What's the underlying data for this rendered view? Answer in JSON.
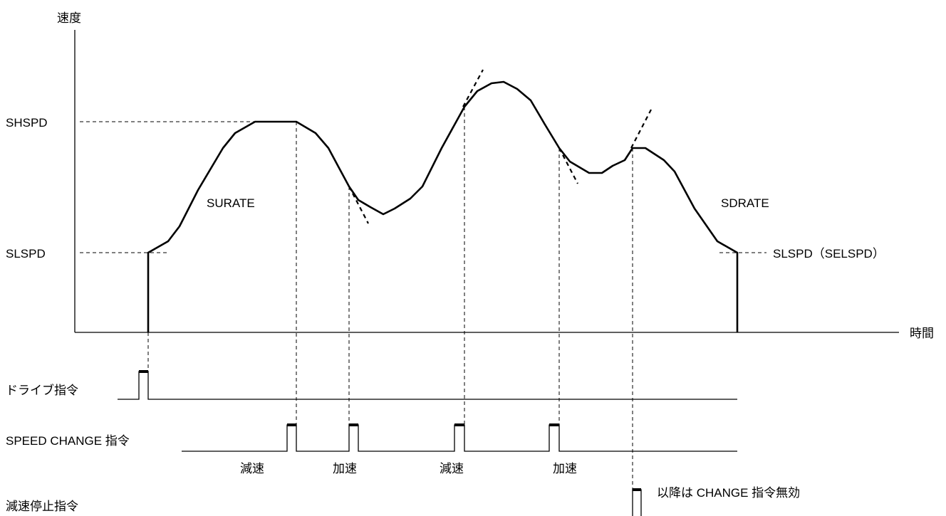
{
  "axes": {
    "y_label": "速度",
    "x_label": "時間"
  },
  "speed_levels": {
    "high": "SHSPD",
    "low": "SLSPD",
    "end_low": "SLSPD（SELSPD）"
  },
  "curve_labels": {
    "accel_rate": "SURATE",
    "decel_rate": "SDRATE"
  },
  "signals": {
    "drive": "ドライブ指令",
    "speed_change": "SPEED CHANGE 指令",
    "decel_stop": "減速停止指令"
  },
  "change_labels": [
    "減速",
    "加速",
    "減速",
    "加速"
  ],
  "note": "以降は CHANGE 指令無効"
}
